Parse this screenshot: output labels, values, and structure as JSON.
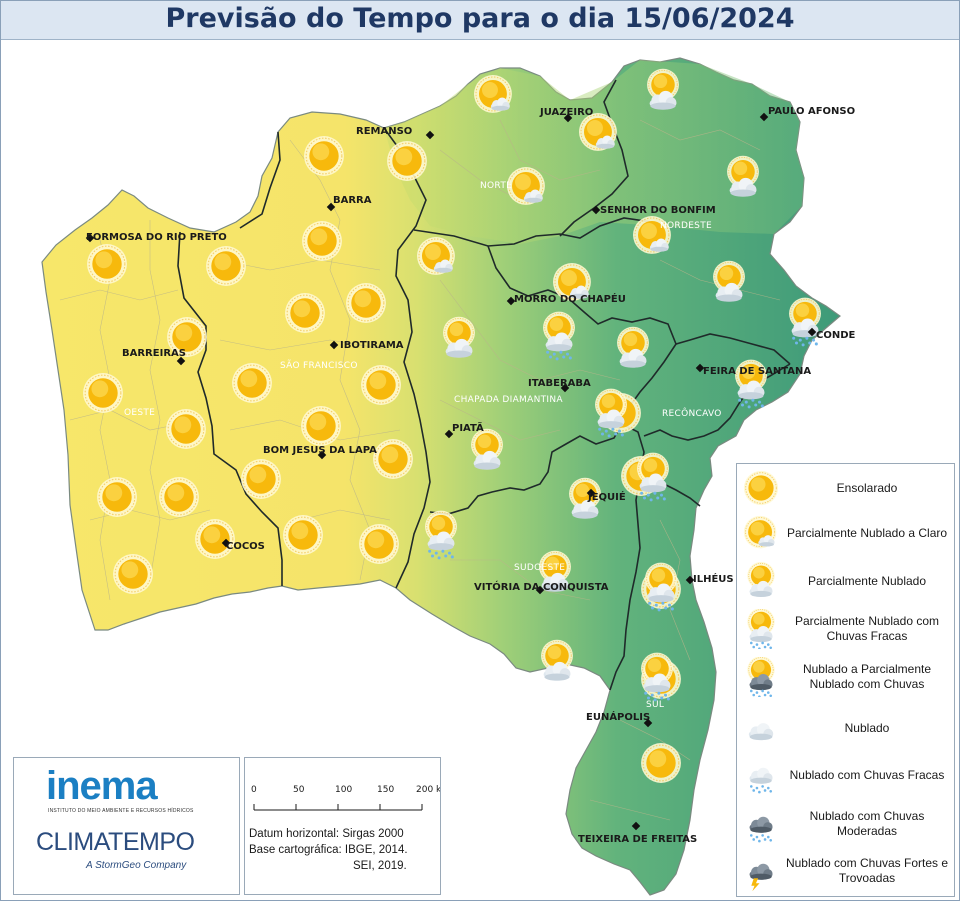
{
  "title": "Previsão do Tempo para o dia 15/06/2024",
  "colors": {
    "sunny_region": "#f6e66a",
    "transition_region": "#cddc6a",
    "cloudy_region": "#5bb07c",
    "coast_region": "#3f9c78",
    "title_text": "#1f3864",
    "title_bg": "#dce6f2"
  },
  "cities": [
    {
      "name": "FORMOSA DO RIO PRETO"
    },
    {
      "name": "REMANSO"
    },
    {
      "name": "JUAZEIRO"
    },
    {
      "name": "PAULO AFONSO"
    },
    {
      "name": "BARRA"
    },
    {
      "name": "SENHOR DO BONFIM"
    },
    {
      "name": "MORRO DO CHAPÉU"
    },
    {
      "name": "BARREIRAS"
    },
    {
      "name": "IBOTIRAMA"
    },
    {
      "name": "CONDE"
    },
    {
      "name": "FEIRA DE SANTANA"
    },
    {
      "name": "ITABERABA"
    },
    {
      "name": "PIATÃ"
    },
    {
      "name": "BOM JESUS DA LAPA"
    },
    {
      "name": "JEQUIÉ"
    },
    {
      "name": "COCOS"
    },
    {
      "name": "VITÓRIA DA CONQUISTA"
    },
    {
      "name": "ILHÉUS"
    },
    {
      "name": "EUNÁPOLIS"
    },
    {
      "name": "TEIXEIRA DE FREITAS"
    }
  ],
  "regions": [
    {
      "name": "NORTE"
    },
    {
      "name": "NORDESTE"
    },
    {
      "name": "SÃO FRANCISCO"
    },
    {
      "name": "OESTE"
    },
    {
      "name": "CHAPADA DIAMANTINA"
    },
    {
      "name": "RECÔNCAVO"
    },
    {
      "name": "SUDOESTE"
    },
    {
      "name": "SUL"
    }
  ],
  "legend": [
    {
      "label": "Ensolarado",
      "icon": "sun-icon"
    },
    {
      "label": "Parcialmente Nublado a Claro",
      "icon": "sun-small-cloud-icon"
    },
    {
      "label": "Parcialmente Nublado",
      "icon": "sun-cloud-icon"
    },
    {
      "label": "Parcialmente Nublado com Chuvas Fracas",
      "icon": "sun-cloud-light-rain-icon"
    },
    {
      "label": "Nublado a Parcialmente Nublado com Chuvas",
      "icon": "sun-dark-cloud-rain-icon"
    },
    {
      "label": "Nublado",
      "icon": "cloud-icon"
    },
    {
      "label": "Nublado com Chuvas Fracas",
      "icon": "cloud-light-rain-icon"
    },
    {
      "label": "Nublado com Chuvas Moderadas",
      "icon": "dark-cloud-rain-icon"
    },
    {
      "label": "Nublado com Chuvas Fortes e Trovoadas",
      "icon": "storm-cloud-icon"
    }
  ],
  "map_icons": [
    {
      "type": "sun-icon"
    },
    {
      "type": "sun-icon"
    },
    {
      "type": "sun-icon"
    },
    {
      "type": "sun-icon"
    },
    {
      "type": "sun-icon"
    },
    {
      "type": "sun-icon"
    },
    {
      "type": "sun-icon"
    },
    {
      "type": "sun-icon"
    },
    {
      "type": "sun-icon"
    },
    {
      "type": "sun-icon"
    },
    {
      "type": "sun-icon"
    },
    {
      "type": "sun-icon"
    },
    {
      "type": "sun-icon"
    },
    {
      "type": "sun-icon"
    },
    {
      "type": "sun-icon"
    },
    {
      "type": "sun-icon"
    },
    {
      "type": "sun-icon"
    },
    {
      "type": "sun-icon"
    },
    {
      "type": "sun-icon"
    },
    {
      "type": "sun-icon"
    },
    {
      "type": "sun-icon"
    },
    {
      "type": "sun-icon"
    },
    {
      "type": "sun-icon"
    },
    {
      "type": "sun-icon"
    },
    {
      "type": "sun-icon"
    },
    {
      "type": "sun-icon"
    },
    {
      "type": "sun-small-cloud-icon"
    },
    {
      "type": "sun-small-cloud-icon"
    },
    {
      "type": "sun-small-cloud-icon"
    },
    {
      "type": "sun-small-cloud-icon"
    },
    {
      "type": "sun-small-cloud-icon"
    },
    {
      "type": "sun-small-cloud-icon"
    },
    {
      "type": "sun-cloud-icon"
    },
    {
      "type": "sun-cloud-icon"
    },
    {
      "type": "sun-cloud-icon"
    },
    {
      "type": "sun-cloud-icon"
    },
    {
      "type": "sun-cloud-icon"
    },
    {
      "type": "sun-cloud-icon"
    },
    {
      "type": "sun-cloud-icon"
    },
    {
      "type": "sun-cloud-icon"
    },
    {
      "type": "sun-cloud-icon"
    },
    {
      "type": "sun-cloud-light-rain-icon"
    },
    {
      "type": "sun-cloud-light-rain-icon"
    },
    {
      "type": "sun-cloud-light-rain-icon"
    },
    {
      "type": "sun-cloud-light-rain-icon"
    },
    {
      "type": "sun-cloud-light-rain-icon"
    },
    {
      "type": "sun-cloud-light-rain-icon"
    },
    {
      "type": "sun-cloud-light-rain-icon"
    },
    {
      "type": "sun-cloud-light-rain-icon"
    }
  ],
  "logos": {
    "inema": "inema",
    "inema_subtitle": "INSTITUTO DO MEIO AMBIENTE E RECURSOS HÍDRICOS",
    "climatempo": "CLIMATEMPO",
    "climatempo_subtitle": "A StormGeo Company"
  },
  "scale": {
    "ticks": [
      "0",
      "50",
      "100",
      "150",
      "200 km"
    ]
  },
  "credits": {
    "datum_line": "Datum horizontal: Sirgas 2000",
    "base_line": "Base cartográfica: IBGE, 2014.",
    "sei_line": "SEI, 2019."
  }
}
